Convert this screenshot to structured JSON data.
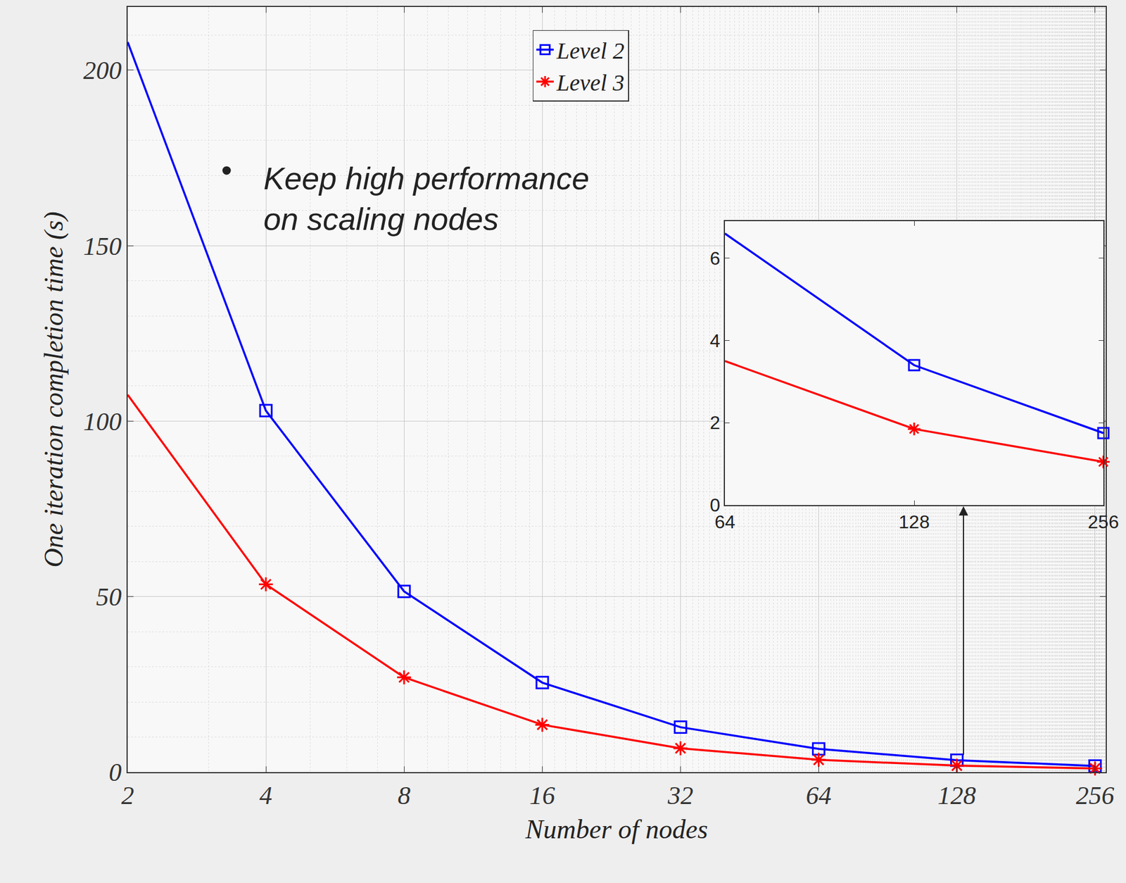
{
  "chart_data": [
    {
      "type": "line",
      "x": [
        2,
        4,
        8,
        16,
        32,
        64,
        128,
        256
      ],
      "xlabel": "Number of nodes",
      "ylabel": "One iteration completion time (s)",
      "xlim": [
        2,
        270
      ],
      "ylim": [
        0,
        218
      ],
      "xticks": [
        2,
        4,
        8,
        16,
        32,
        64,
        128,
        256
      ],
      "yticks": [
        0,
        50,
        100,
        150,
        200
      ],
      "log": "x",
      "grid": true,
      "legend": "upper center",
      "annotation": {
        "bullet": "•",
        "lines": [
          "Keep high performance",
          "on scaling nodes"
        ]
      },
      "series": [
        {
          "name": "Level 2",
          "color": "#0000ff",
          "marker": "square",
          "values": [
            208,
            103,
            51.5,
            25.5,
            12.8,
            6.6,
            3.4,
            1.75
          ]
        },
        {
          "name": "Level 3",
          "color": "#ff0000",
          "marker": "asterisk",
          "values": [
            107.5,
            53.5,
            27,
            13.5,
            6.8,
            3.5,
            1.85,
            1.05
          ]
        }
      ]
    },
    {
      "type": "line",
      "x": [
        64,
        128,
        256
      ],
      "xlim": [
        64,
        256
      ],
      "ylim": [
        0,
        6.9
      ],
      "xticks": [
        64,
        128,
        256
      ],
      "yticks": [
        0,
        2,
        4,
        6
      ],
      "log": "x",
      "grid": false,
      "series": [
        {
          "name": "Level 2",
          "color": "#0000ff",
          "marker": "square",
          "values": [
            6.6,
            3.4,
            1.75
          ]
        },
        {
          "name": "Level 3",
          "color": "#ff0000",
          "marker": "asterisk",
          "values": [
            3.5,
            1.85,
            1.05
          ]
        }
      ]
    }
  ]
}
